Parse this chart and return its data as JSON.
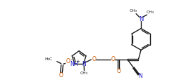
{
  "bg_color": "#ffffff",
  "line_color": "#1a1a1a",
  "bond_lw": 1.0,
  "figsize": [
    2.54,
    1.17
  ],
  "dpi": 100,
  "font_size": 5.5,
  "orange_color": "#cc5500",
  "blue_color": "#2222cc",
  "xlim": [
    0,
    10.2
  ],
  "ylim": [
    -0.5,
    3.8
  ]
}
